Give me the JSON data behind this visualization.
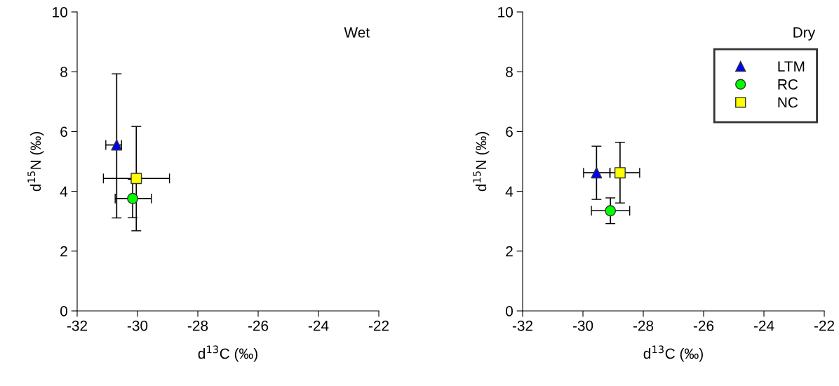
{
  "chart_data": [
    {
      "type": "scatter",
      "xlabel": "d$^{13}$C (‰)",
      "ylabel": "d$^{15}$N (‰)",
      "annotations": [
        "Wet"
      ],
      "xlim": [
        -32,
        -22
      ],
      "ylim": [
        0,
        10
      ],
      "xticks": [
        -32,
        -30,
        -28,
        -26,
        -24,
        -22
      ],
      "yticks": [
        0,
        2,
        4,
        6,
        8,
        10
      ],
      "grid": false,
      "legend": false,
      "series": [
        {
          "marker": "triangle",
          "color": "#0000ff",
          "x": [
            -30.69
          ],
          "values": [
            5.55
          ],
          "errors": [
            [
              3.11,
              7.93
            ]
          ],
          "xerrors": [
            [
              -31.05,
              -30.53
            ]
          ]
        },
        {
          "marker": "circle",
          "color": "#00ff00",
          "x": [
            -30.16
          ],
          "values": [
            3.76
          ],
          "errors": [
            [
              3.12,
              4.4
            ]
          ],
          "xerrors": [
            [
              -30.74,
              -29.54
            ]
          ]
        },
        {
          "marker": "square",
          "color": "#ffff00",
          "x": [
            -30.04
          ],
          "values": [
            4.43
          ],
          "errors": [
            [
              2.68,
              6.17
            ]
          ],
          "xerrors": [
            [
              -31.13,
              -28.94
            ]
          ]
        }
      ]
    },
    {
      "type": "scatter",
      "xlabel": "d$^{13}$C (‰)",
      "ylabel": "d$^{15}$N (‰)",
      "annotations": [
        "Dry"
      ],
      "xlim": [
        -32,
        -22
      ],
      "ylim": [
        0,
        10
      ],
      "xticks": [
        -32,
        -30,
        -28,
        -26,
        -24,
        -22
      ],
      "yticks": [
        0,
        2,
        4,
        6,
        8,
        10
      ],
      "grid": false,
      "legend": "top right",
      "series": [
        {
          "name": "LTM",
          "marker": "triangle",
          "color": "#0000ff",
          "x": [
            -29.55
          ],
          "values": [
            4.62
          ],
          "errors": [
            [
              3.73,
              5.51
            ]
          ],
          "xerrors": [
            [
              -29.98,
              -29.11
            ]
          ]
        },
        {
          "name": "RC",
          "marker": "circle",
          "color": "#00ff00",
          "x": [
            -29.09
          ],
          "values": [
            3.35
          ],
          "errors": [
            [
              2.92,
              3.78
            ]
          ],
          "xerrors": [
            [
              -29.72,
              -28.45
            ]
          ]
        },
        {
          "name": "NC",
          "marker": "square",
          "color": "#ffff00",
          "x": [
            -28.77
          ],
          "values": [
            4.62
          ],
          "errors": [
            [
              3.61,
              5.64
            ]
          ],
          "xerrors": [
            [
              -29.1,
              -28.12
            ]
          ]
        }
      ]
    }
  ]
}
